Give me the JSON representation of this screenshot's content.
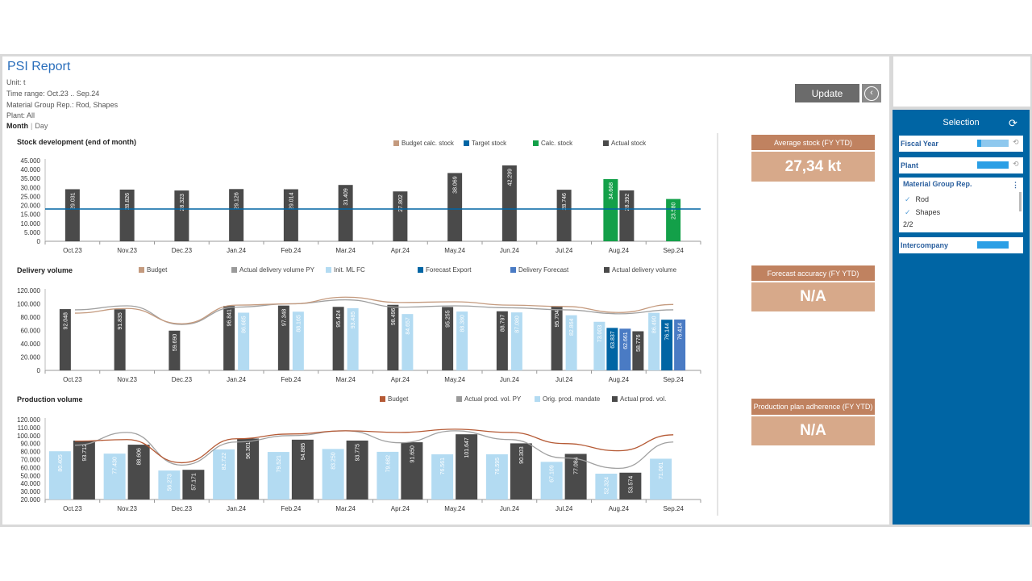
{
  "header": {
    "title": "PSI Report",
    "unit": "Unit: t",
    "time_range": "Time range: Oct.23 .. Sep.24",
    "material_group": "Material Group Rep.: Rod, Shapes",
    "plant": "Plant: All",
    "toggle_month": "Month",
    "toggle_sep": "|",
    "toggle_day": "Day",
    "update_label": "Update",
    "back_icon": "‹"
  },
  "colors": {
    "budget_calc": "#c49a7e",
    "target": "#0065a4",
    "calc": "#13a049",
    "actual": "#4a4a4a",
    "budget": "#c49a7e",
    "actual_py": "#9a9a9a",
    "init_ml": "#b3dbf2",
    "forecast_export": "#0065a4",
    "delivery_forecast": "#4a7bc4",
    "orig_prod": "#b3dbf2",
    "line_budget": "#b55a35",
    "line_py": "#a0a0a0"
  },
  "kpis": [
    {
      "label": "Average stock (FY YTD)",
      "value": "27,34  kt"
    },
    {
      "label": "Forecast accuracy (FY YTD)",
      "value": "N/A"
    },
    {
      "label": "Production plan adherence (FY YTD)",
      "value": "N/A"
    }
  ],
  "selection": {
    "title": "Selection",
    "refresh_icon": "⟳",
    "fiscal_year": "Fiscal Year",
    "plant": "Plant",
    "material_group": "Material Group Rep.",
    "menu_icon": "⋮",
    "options": [
      "Rod",
      "Shapes"
    ],
    "check_icon": "✓",
    "count": "2/2",
    "intercompany": "Intercompany",
    "small_refresh": "⟲"
  },
  "chart_data": [
    {
      "type": "bar",
      "title": "Stock development (end of month)",
      "categories": [
        "Oct.23",
        "Nov.23",
        "Dec.23",
        "Jan.24",
        "Feb.24",
        "Mar.24",
        "Apr.24",
        "May.24",
        "Jun.24",
        "Jul.24",
        "Aug.24",
        "Sep.24"
      ],
      "legend": [
        "Budget calc. stock",
        "Target stock",
        "Calc. stock",
        "Actual stock"
      ],
      "yticks": [
        "0",
        "5.000",
        "10.000",
        "15.000",
        "20.000",
        "25.000",
        "30.000",
        "35.000",
        "40.000",
        "45.000"
      ],
      "ylim": [
        0,
        45000
      ],
      "target_stock": 18000,
      "actual_stock": [
        29031,
        28826,
        28323,
        29126,
        29014,
        31409,
        27802,
        38069,
        42299,
        28746,
        28392,
        null
      ],
      "actual_labels": [
        "29.031",
        "28.826",
        "28.323",
        "29.126",
        "29.014",
        "31.409",
        "27.802",
        "38.069",
        "42.299",
        "28.746",
        "28.392",
        ""
      ],
      "calc_stock": [
        null,
        null,
        null,
        null,
        null,
        null,
        null,
        null,
        null,
        null,
        34668,
        23580
      ],
      "calc_labels": [
        "",
        "",
        "",
        "",
        "",
        "",
        "",
        "",
        "",
        "",
        "34.668",
        "23.580"
      ]
    },
    {
      "type": "bar",
      "title": "Delivery volume",
      "categories": [
        "Oct.23",
        "Nov.23",
        "Dec.23",
        "Jan.24",
        "Feb.24",
        "Mar.24",
        "Apr.24",
        "May.24",
        "Jun.24",
        "Jul.24",
        "Aug.24",
        "Sep.24"
      ],
      "legend": [
        "Budget",
        "Actual delivery volume PY",
        "Init. ML FC",
        "Forecast Export",
        "Delivery Forecast",
        "Actual delivery volume"
      ],
      "yticks": [
        "0",
        "20.000",
        "40.000",
        "60.000",
        "80.000",
        "100.000",
        "120.000"
      ],
      "ylim": [
        0,
        120000
      ],
      "actual": [
        92048,
        91835,
        59690,
        96841,
        97348,
        95424,
        98496,
        95255,
        88797,
        95704,
        58776,
        null
      ],
      "actual_labels": [
        "92.048",
        "91.835",
        "59.690",
        "96.841",
        "97.348",
        "95.424",
        "98.496",
        "95.255",
        "88.797",
        "95.704",
        "58.776",
        ""
      ],
      "init_ml": [
        null,
        null,
        null,
        86685,
        88165,
        93485,
        84657,
        88380,
        87080,
        82864,
        73003,
        86490
      ],
      "init_labels": [
        "",
        "",
        "",
        "86.685",
        "88.165",
        "93.485",
        "84.657",
        "88.380",
        "87.080",
        "82.864",
        "73.003",
        "86.490"
      ],
      "forecast_export": [
        null,
        null,
        null,
        null,
        null,
        null,
        null,
        null,
        null,
        null,
        63837,
        76144
      ],
      "fe_labels": [
        "",
        "",
        "",
        "",
        "",
        "",
        "",
        "",
        "",
        "",
        "63.837",
        "76.144"
      ],
      "delivery_forecast": [
        null,
        null,
        null,
        null,
        null,
        null,
        null,
        null,
        null,
        null,
        62661,
        76414
      ],
      "df_labels": [
        "",
        "",
        "",
        "",
        "",
        "",
        "",
        "",
        "",
        "",
        "62.661",
        "76.414"
      ],
      "budget_line": [
        86000,
        93000,
        70000,
        98000,
        100000,
        110000,
        102000,
        103000,
        98000,
        96000,
        87000,
        99000
      ],
      "py_line": [
        91000,
        97000,
        69000,
        95000,
        100000,
        106000,
        95000,
        97000,
        94000,
        91000,
        85000,
        91000
      ]
    },
    {
      "type": "bar",
      "title": "Production volume",
      "categories": [
        "Oct.23",
        "Nov.23",
        "Dec.23",
        "Jan.24",
        "Feb.24",
        "Mar.24",
        "Apr.24",
        "May.24",
        "Jun.24",
        "Jul.24",
        "Aug.24",
        "Sep.24"
      ],
      "legend": [
        "Budget",
        "Actual prod. vol. PY",
        "Orig. prod. mandate",
        "Actual prod. vol."
      ],
      "yticks": [
        "20.000",
        "30.000",
        "40.000",
        "50.000",
        "60.000",
        "70.000",
        "80.000",
        "90.000",
        "100.000",
        "110.000",
        "120.000"
      ],
      "ylim": [
        20000,
        120000
      ],
      "orig": [
        80405,
        77430,
        56273,
        82722,
        79521,
        83250,
        79682,
        76561,
        76595,
        67109,
        52324,
        71061
      ],
      "orig_labels": [
        "80.405",
        "77.430",
        "56.273",
        "82.722",
        "79.521",
        "83.250",
        "79.682",
        "76.561",
        "76.595",
        "67.109",
        "52.324",
        "71.061"
      ],
      "actual": [
        93712,
        88606,
        57171,
        96301,
        94885,
        93775,
        91650,
        101647,
        90303,
        77084,
        53574,
        null
      ],
      "actual_labels": [
        "93.712",
        "88.606",
        "57.171",
        "96.301",
        "94.885",
        "93.775",
        "91.650",
        "101.647",
        "90.303",
        "77.084",
        "53.574",
        ""
      ],
      "budget_line": [
        93000,
        95000,
        66000,
        96000,
        102000,
        106000,
        104000,
        108000,
        104000,
        90000,
        81000,
        101000
      ],
      "py_line": [
        88000,
        104000,
        63000,
        92000,
        100000,
        106000,
        91000,
        106000,
        95000,
        72000,
        59000,
        92000
      ]
    }
  ]
}
